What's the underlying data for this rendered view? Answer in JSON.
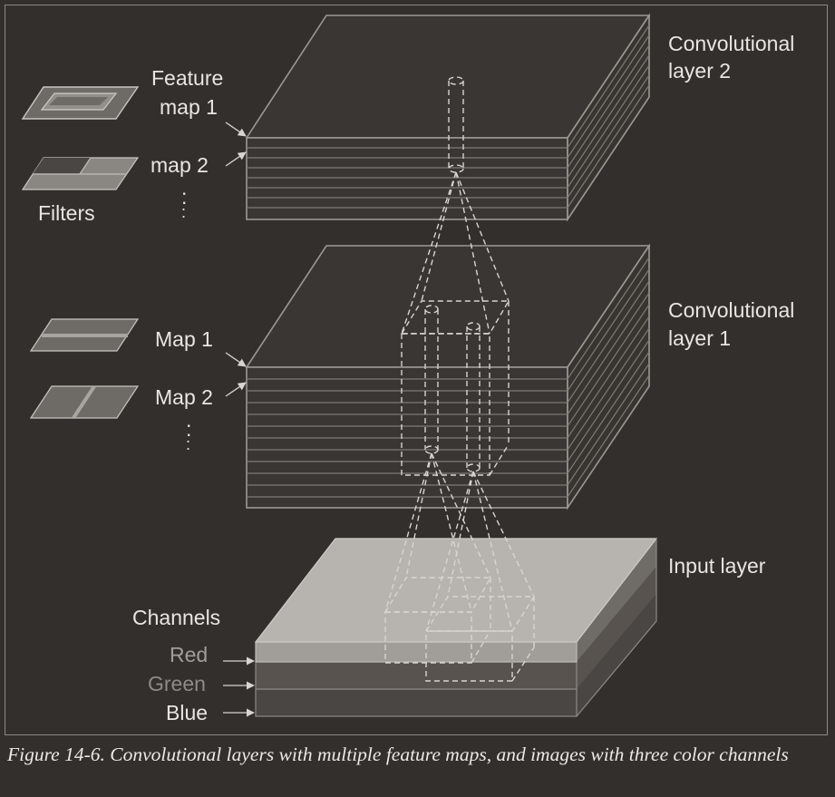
{
  "labels": {
    "conv_layer_2_line1": "Convolutional",
    "conv_layer_2_line2": "layer 2",
    "conv_layer_1_line1": "Convolutional",
    "conv_layer_1_line2": "layer 1",
    "input_layer": "Input layer",
    "feature_line1": "Feature",
    "feature_map_1": "map 1",
    "feature_map_2": "map 2",
    "filters": "Filters",
    "map_1": "Map 1",
    "map_2": "Map 2",
    "ellipsis": ":",
    "channels": "Channels",
    "red": "Red",
    "green": "Green",
    "blue": "Blue"
  },
  "caption": "Figure 14-6. Convolutional layers with multiple feature maps, and images with three color channels",
  "colors": {
    "background": "#332f2c",
    "line": "#9c9894",
    "text": "#e9e6e2",
    "input_top": "#b7b3ae",
    "red_channel": "#a19d99",
    "green_channel": "#8e8a86"
  }
}
